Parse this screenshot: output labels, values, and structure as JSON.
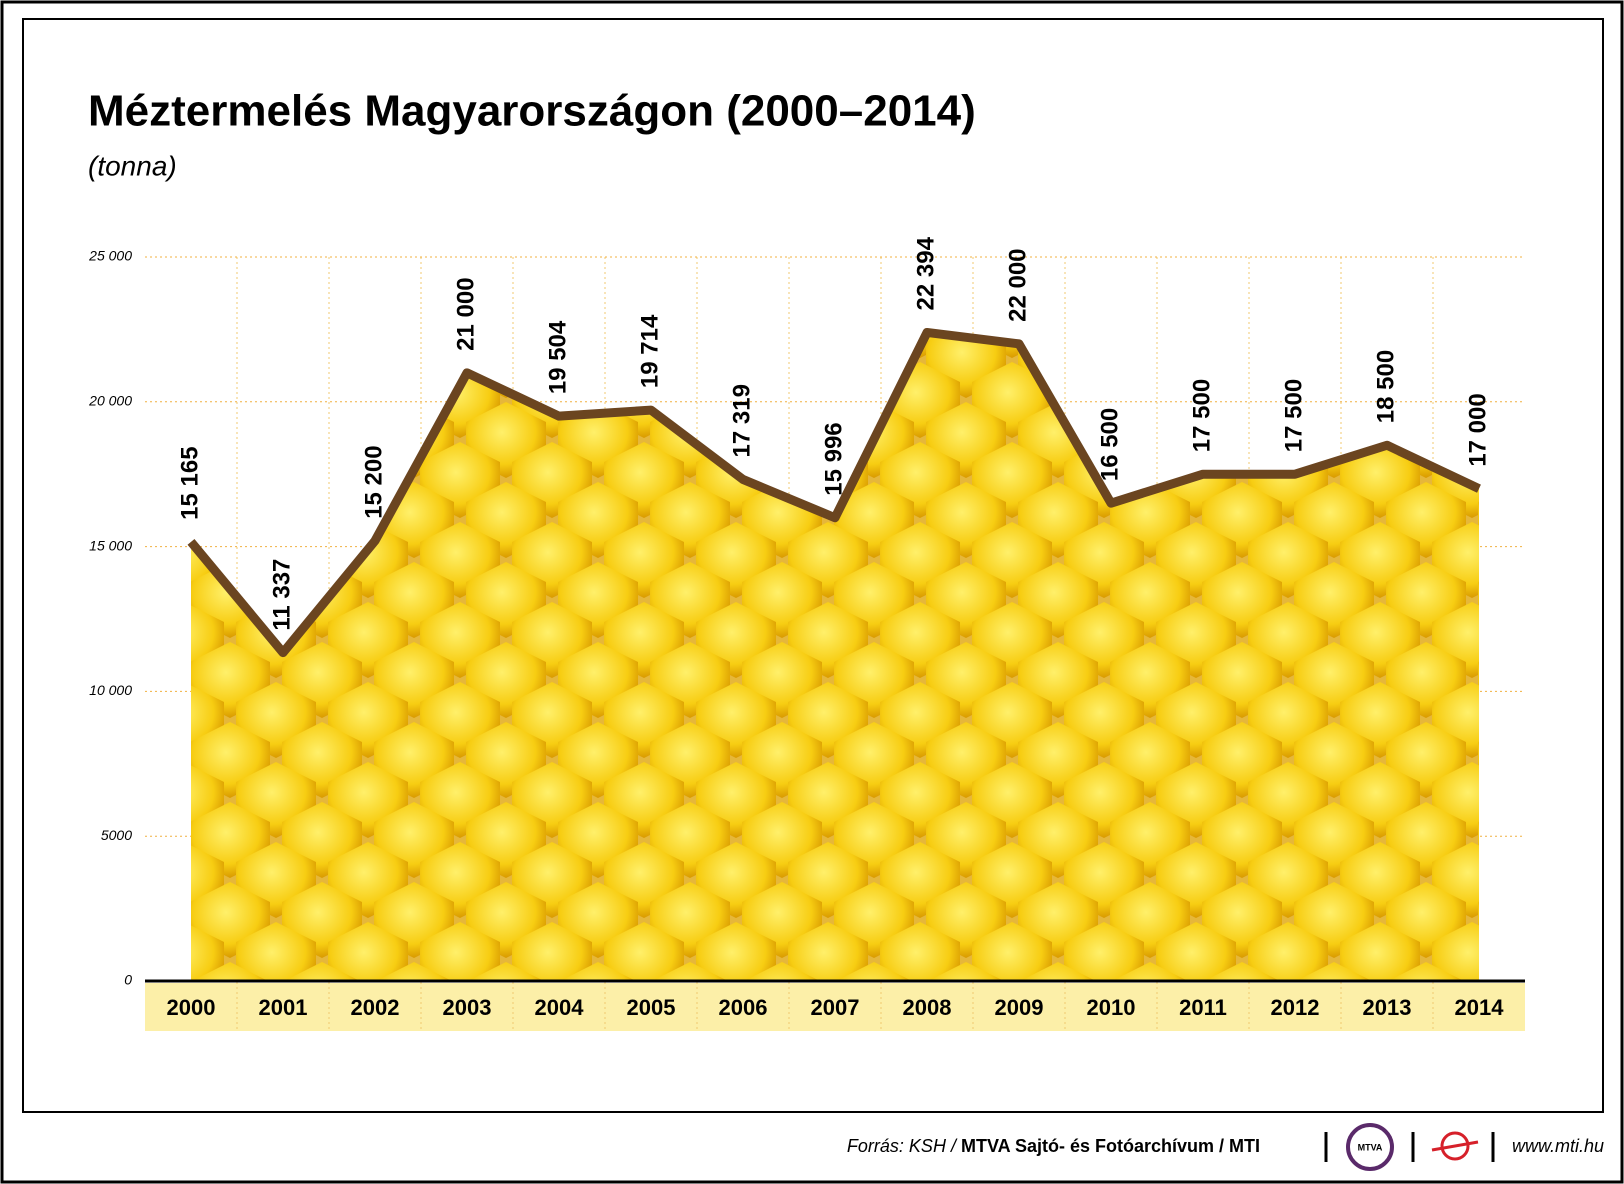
{
  "chart_data": {
    "type": "line",
    "title": "Méztermelés Magyarországon (2000–2014)",
    "subtitle": "(tonna)",
    "categories": [
      "2000",
      "2001",
      "2002",
      "2003",
      "2004",
      "2005",
      "2006",
      "2007",
      "2008",
      "2009",
      "2010",
      "2011",
      "2012",
      "2013",
      "2014"
    ],
    "values": [
      15165,
      11337,
      15200,
      21000,
      19504,
      19714,
      17319,
      15996,
      22394,
      22000,
      16500,
      17500,
      17500,
      18500,
      17000
    ],
    "value_labels": [
      "15 165",
      "11 337",
      "15 200",
      "21 000",
      "19 504",
      "19 714",
      "17 319",
      "15 996",
      "22 394",
      "22 000",
      "16 500",
      "17 500",
      "17 500",
      "18 500",
      "17 000"
    ],
    "color": "#6b4520",
    "ylim": [
      0,
      25000
    ],
    "yticks": [
      0,
      5000,
      {
        "value": 10000,
        "label": "10 000"
      },
      {
        "value": 15000,
        "label": "15 000"
      },
      {
        "value": 20000,
        "label": "20 000"
      },
      {
        "value": 25000,
        "label": "25 000"
      }
    ],
    "grid": true
  },
  "footer": {
    "source_prefix": "Forrás: KSH /",
    "source": "MTVA Sajtó- és Fotóarchívum / MTI",
    "logo": "MTVA",
    "url": "www.mti.hu"
  }
}
